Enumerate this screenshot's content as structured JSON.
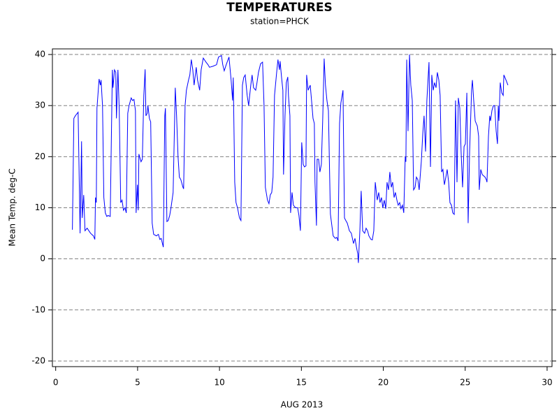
{
  "chart_data": {
    "type": "line",
    "title": "TEMPERATURES",
    "subtitle": "station=PHCK",
    "x_label": "AUG 2013",
    "y_label": "Mean Temp. deg-C",
    "xlim": [
      -0.2,
      30.3
    ],
    "ylim": [
      -21.1,
      41.1
    ],
    "xticks": [
      0,
      5,
      10,
      15,
      20,
      25,
      30
    ],
    "yticks": [
      -20,
      -10,
      0,
      10,
      20,
      30,
      40
    ],
    "grid": true,
    "x": [
      1.02,
      1.11,
      1.2,
      1.37,
      1.49,
      1.58,
      1.62,
      1.71,
      1.79,
      1.92,
      2.13,
      2.3,
      2.39,
      2.43,
      2.48,
      2.52,
      2.6,
      2.65,
      2.73,
      2.77,
      2.86,
      2.94,
      3.03,
      3.12,
      3.2,
      3.33,
      3.46,
      3.5,
      3.59,
      3.67,
      3.71,
      3.8,
      3.88,
      3.97,
      4.05,
      4.14,
      4.23,
      4.31,
      4.4,
      4.48,
      4.61,
      4.69,
      4.78,
      4.87,
      4.91,
      4.99,
      5.04,
      5.08,
      5.21,
      5.29,
      5.38,
      5.46,
      5.51,
      5.59,
      5.63,
      5.72,
      5.8,
      5.89,
      5.98,
      6.15,
      6.27,
      6.36,
      6.44,
      6.57,
      6.66,
      6.7,
      6.79,
      6.87,
      6.96,
      7.04,
      7.17,
      7.3,
      7.38,
      7.47,
      7.55,
      7.64,
      7.77,
      7.81,
      7.9,
      7.98,
      8.11,
      8.19,
      8.28,
      8.37,
      8.45,
      8.58,
      8.66,
      8.79,
      8.88,
      9.01,
      9.18,
      9.3,
      9.39,
      9.6,
      9.82,
      9.94,
      10.12,
      10.2,
      10.29,
      10.41,
      10.58,
      10.71,
      10.8,
      10.84,
      10.93,
      11.01,
      11.1,
      11.22,
      11.31,
      11.4,
      11.48,
      11.57,
      11.69,
      11.78,
      11.91,
      11.99,
      12.08,
      12.21,
      12.29,
      12.38,
      12.51,
      12.63,
      12.72,
      12.8,
      12.93,
      13.02,
      13.1,
      13.19,
      13.27,
      13.36,
      13.49,
      13.57,
      13.66,
      13.7,
      13.79,
      13.87,
      13.91,
      14.0,
      14.08,
      14.17,
      14.21,
      14.3,
      14.34,
      14.43,
      14.51,
      14.64,
      14.77,
      14.85,
      14.94,
      15.02,
      15.11,
      15.19,
      15.28,
      15.32,
      15.41,
      15.54,
      15.62,
      15.71,
      15.79,
      15.83,
      15.92,
      15.96,
      16.05,
      16.13,
      16.22,
      16.3,
      16.39,
      16.47,
      16.56,
      16.65,
      16.73,
      16.77,
      16.86,
      16.94,
      17.07,
      17.16,
      17.24,
      17.33,
      17.41,
      17.54,
      17.63,
      17.71,
      17.8,
      17.93,
      18.05,
      18.18,
      18.27,
      18.35,
      18.44,
      18.48,
      18.57,
      18.65,
      18.74,
      18.86,
      18.95,
      19.04,
      19.12,
      19.25,
      19.33,
      19.42,
      19.51,
      19.63,
      19.72,
      19.8,
      19.89,
      19.97,
      20.06,
      20.15,
      20.23,
      20.32,
      20.4,
      20.49,
      20.57,
      20.66,
      20.74,
      20.83,
      20.91,
      21.0,
      21.08,
      21.17,
      21.25,
      21.34,
      21.38,
      21.43,
      21.51,
      21.6,
      21.68,
      21.77,
      21.85,
      21.94,
      22.02,
      22.11,
      22.19,
      22.32,
      22.41,
      22.49,
      22.58,
      22.66,
      22.79,
      22.88,
      22.96,
      23.05,
      23.13,
      23.22,
      23.3,
      23.39,
      23.47,
      23.56,
      23.64,
      23.73,
      23.82,
      23.9,
      23.99,
      24.07,
      24.16,
      24.24,
      24.33,
      24.41,
      24.5,
      24.58,
      24.67,
      24.75,
      24.84,
      24.93,
      25.01,
      25.1,
      25.18,
      25.27,
      25.39,
      25.44,
      25.52,
      25.61,
      25.74,
      25.82,
      25.86,
      25.95,
      26.04,
      26.21,
      26.29,
      26.33,
      26.42,
      26.5,
      26.55,
      26.63,
      26.72,
      26.8,
      26.89,
      26.97,
      27.02,
      27.06,
      27.14,
      27.23,
      27.32,
      27.36,
      27.49,
      27.61
    ],
    "series": [
      {
        "name": "Mean Temp",
        "color": "#0000ff",
        "values": [
          5.7,
          27.5,
          28,
          28.7,
          5,
          23,
          8,
          12.5,
          5.5,
          6,
          5,
          4.5,
          3.8,
          12,
          11,
          29.5,
          33,
          35.2,
          34,
          35,
          30,
          12,
          9,
          8.3,
          8.5,
          8.3,
          37,
          33.5,
          37,
          36.5,
          27.5,
          37,
          29,
          11,
          11.5,
          9.5,
          10,
          9,
          28.5,
          30,
          31.5,
          31,
          31.2,
          29,
          9,
          14.5,
          9.5,
          20.5,
          19,
          19.5,
          32,
          37.1,
          28,
          28.5,
          30,
          27.5,
          26.8,
          7,
          4.8,
          4.5,
          4.8,
          3.8,
          4,
          2.3,
          28,
          29.5,
          7.3,
          7.5,
          8.5,
          10,
          13,
          33.5,
          28,
          20,
          16,
          15.5,
          14,
          13.7,
          30,
          33,
          35,
          36,
          39,
          37,
          34,
          37.5,
          35,
          33,
          37,
          39.3,
          38.5,
          38,
          37.5,
          37.7,
          38,
          39.5,
          39.8,
          38,
          36.8,
          38,
          39.5,
          35,
          31,
          35.5,
          15,
          11,
          10,
          8,
          7.5,
          34,
          35.5,
          36,
          32,
          30,
          34,
          36,
          33.5,
          33,
          34.5,
          36.5,
          38.2,
          38.5,
          30,
          14,
          11.5,
          10.8,
          12.5,
          13,
          16,
          32,
          36.5,
          39,
          37,
          38.7,
          35.5,
          33,
          16.5,
          28,
          34.5,
          35.6,
          32,
          28,
          9,
          13,
          10.5,
          10,
          10,
          8.5,
          5.5,
          22.8,
          18.5,
          18,
          18.2,
          36,
          33,
          34,
          31,
          27.5,
          26.5,
          15,
          6.5,
          19.5,
          19.5,
          17,
          18.5,
          27,
          39.2,
          34,
          31,
          29,
          15.5,
          8.8,
          6.5,
          4.5,
          4,
          4.2,
          3.5,
          26.5,
          30.5,
          33,
          8,
          7.5,
          7,
          5.5,
          5,
          3,
          4,
          2.5,
          1,
          -0.8,
          5.5,
          13.3,
          5.5,
          5,
          6,
          5.5,
          4.5,
          3.8,
          3.7,
          5.5,
          15,
          11.5,
          13,
          11,
          12,
          10,
          11.5,
          9.8,
          15,
          13.5,
          17,
          14,
          15,
          12,
          13,
          11.5,
          10.5,
          11,
          9.8,
          10.5,
          9,
          20,
          19,
          39,
          25,
          40,
          34,
          31,
          13.5,
          14,
          16,
          15.5,
          13.5,
          19,
          24.5,
          28,
          21,
          31,
          38.5,
          18,
          36,
          33,
          34.5,
          33.5,
          36.5,
          35,
          32,
          17,
          17.5,
          14.5,
          16,
          17.5,
          15,
          11,
          10.5,
          9,
          8.7,
          31,
          15,
          31.5,
          29.5,
          21,
          14,
          22,
          22.5,
          32.5,
          7,
          21,
          33,
          35,
          31,
          27,
          26,
          24,
          13.5,
          17.5,
          16.5,
          16,
          15.5,
          15,
          24,
          28,
          27,
          29,
          30,
          30,
          25,
          22.5,
          30,
          27,
          34.5,
          32.5,
          32,
          36,
          35,
          34
        ]
      }
    ]
  }
}
